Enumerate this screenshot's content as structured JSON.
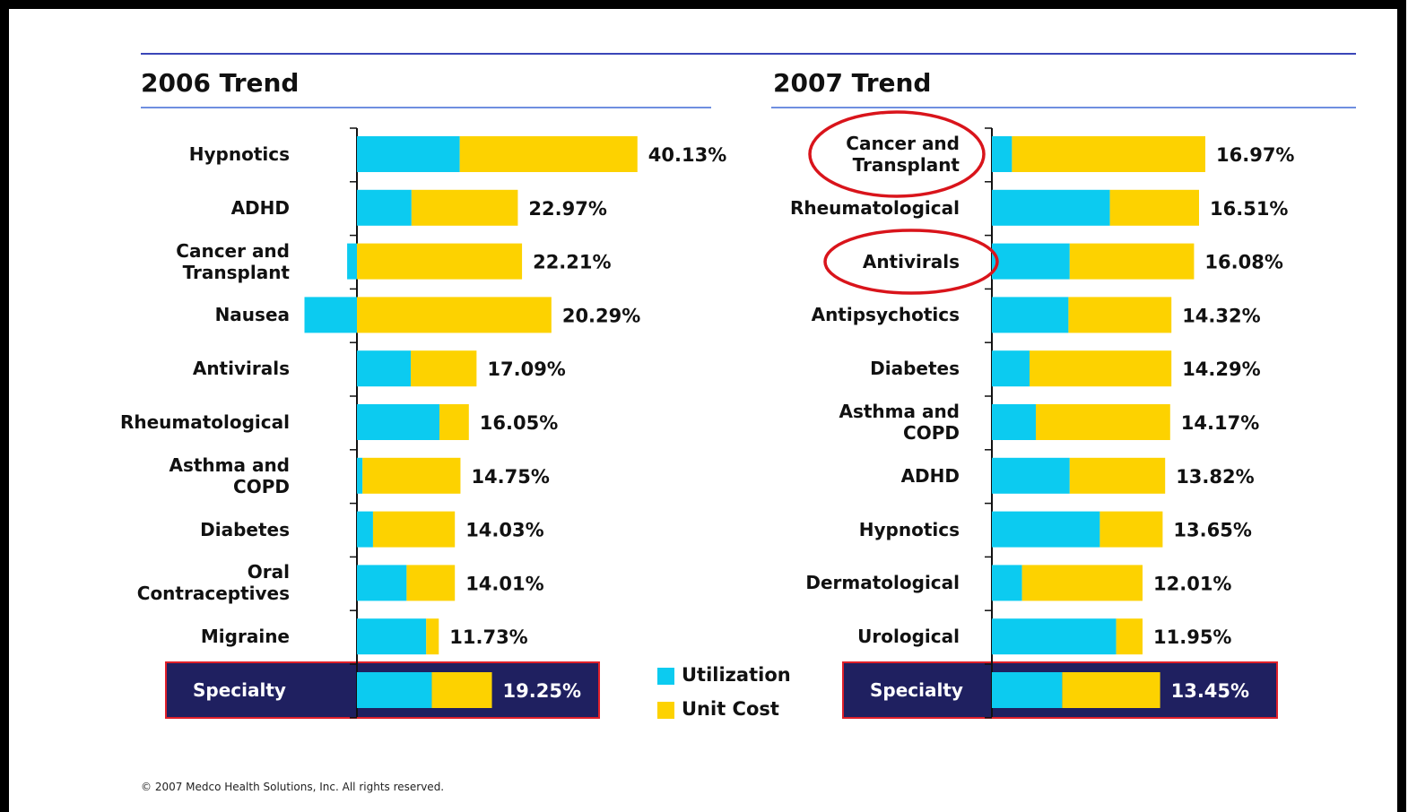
{
  "chart_data": [
    {
      "type": "bar",
      "title": "2006 Trend",
      "categories": [
        "Hypnotics",
        "ADHD",
        "Cancer and\nTransplant",
        "Nausea",
        "Antivirals",
        "Rheumatological",
        "Asthma and\nCOPD",
        "Diabetes",
        "Oral\nContraceptives",
        "Migraine",
        "Specialty"
      ],
      "series": [
        {
          "name": "Utilization",
          "color": "#0ccbf0",
          "values": [
            14.7,
            7.8,
            -1.4,
            -7.5,
            7.7,
            11.8,
            0.8,
            2.3,
            7.1,
            9.9,
            10.7
          ]
        },
        {
          "name": "Unit Cost",
          "color": "#fdd200",
          "values": [
            25.4,
            15.2,
            23.6,
            27.8,
            9.4,
            4.2,
            14.0,
            11.7,
            6.9,
            1.8,
            8.6
          ]
        }
      ],
      "totals": [
        40.13,
        22.97,
        22.21,
        20.29,
        17.09,
        16.05,
        14.75,
        14.03,
        14.01,
        11.73,
        19.25
      ],
      "total_labels": [
        "40.13%",
        "22.97%",
        "22.21%",
        "20.29%",
        "17.09%",
        "16.05%",
        "14.75%",
        "14.03%",
        "14.01%",
        "11.73%",
        "19.25%"
      ]
    },
    {
      "type": "bar",
      "title": "2007 Trend",
      "categories": [
        "Cancer and\nTransplant",
        "Rheumatological",
        "Antivirals",
        "Antipsychotics",
        "Diabetes",
        "Asthma and\nCOPD",
        "ADHD",
        "Hypnotics",
        "Dermatological",
        "Urological",
        "Specialty"
      ],
      "series": [
        {
          "name": "Utilization",
          "color": "#0ccbf0",
          "values": [
            1.6,
            9.4,
            6.2,
            6.1,
            3.0,
            3.5,
            6.2,
            8.6,
            2.4,
            9.9,
            5.6
          ]
        },
        {
          "name": "Unit Cost",
          "color": "#fdd200",
          "values": [
            15.4,
            7.1,
            9.9,
            8.2,
            11.3,
            10.7,
            7.6,
            5.0,
            9.6,
            2.1,
            7.8
          ]
        }
      ],
      "totals": [
        16.97,
        16.51,
        16.08,
        14.32,
        14.29,
        14.17,
        13.82,
        13.65,
        12.01,
        11.95,
        13.45
      ],
      "total_labels": [
        "16.97%",
        "16.51%",
        "16.08%",
        "14.32%",
        "14.29%",
        "14.17%",
        "13.82%",
        "13.65%",
        "12.01%",
        "11.95%",
        "13.45%"
      ]
    }
  ],
  "footer": "© 2007 Medco Health Solutions, Inc. All rights reserved."
}
